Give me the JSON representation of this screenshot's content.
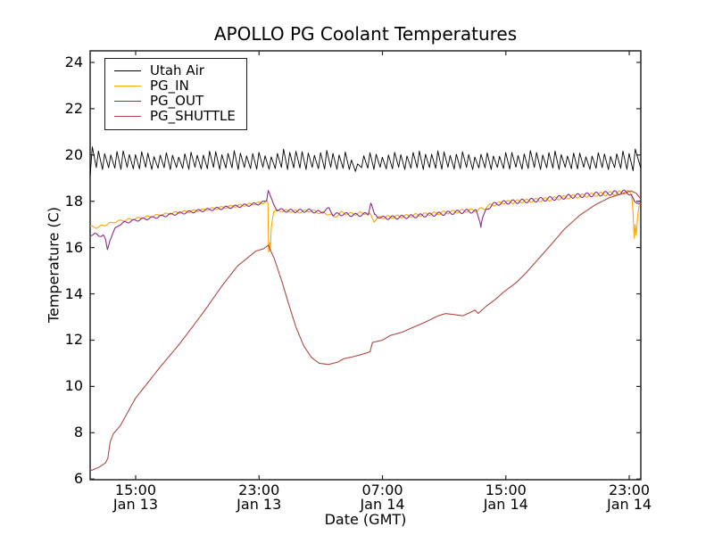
{
  "figure": {
    "background": "#ffffff",
    "spine_color": "#262626"
  },
  "chart_data": {
    "type": "line",
    "title": "APOLLO PG Coolant Temperatures",
    "xlabel": "Date (GMT)",
    "ylabel": "Temperature (C)",
    "x_axis": {
      "unit": "hours since Jan 13 00:00 GMT",
      "range": [
        12.05,
        47.75
      ],
      "ticks": [
        {
          "value": 15,
          "time": "15:00",
          "date": "Jan 13"
        },
        {
          "value": 23,
          "time": "23:00",
          "date": "Jan 13"
        },
        {
          "value": 31,
          "time": "07:00",
          "date": "Jan 14"
        },
        {
          "value": 39,
          "time": "15:00",
          "date": "Jan 14"
        },
        {
          "value": 47,
          "time": "23:00",
          "date": "Jan 14"
        }
      ]
    },
    "y_axis": {
      "range": [
        5.97,
        24.5
      ],
      "ticks": [
        6,
        8,
        10,
        12,
        14,
        16,
        18,
        20,
        22,
        24
      ]
    },
    "legend": {
      "position": "upper left",
      "entries": [
        "Utah Air",
        "PG_IN",
        "PG_OUT",
        "PG_SHUTTLE"
      ]
    },
    "series": [
      {
        "name": "Utah Air",
        "color": "#000000",
        "width": 0.9,
        "generator": {
          "kind": "sawtooth",
          "start": 12.05,
          "end": 47.75,
          "period_hours": 0.4,
          "peak": 20.05,
          "trough": 19.42,
          "peak_jitter": 0.1,
          "trough_jitter": 0.05,
          "rise_fraction": 0.35,
          "start_spike": {
            "peak": 20.35,
            "trough": 19.1
          },
          "windows": [
            {
              "from": 24.3,
              "to": 25.3,
              "peak_delta": 0.18,
              "trough_delta": 0.0
            },
            {
              "from": 28.5,
              "to": 29.4,
              "peak_delta": -0.35,
              "trough_delta": -0.08
            },
            {
              "from": 47.2,
              "to": 47.75,
              "peak_delta": 0.25,
              "trough_delta": -0.15
            }
          ]
        }
      },
      {
        "name": "PG_IN",
        "color": "#ffa500",
        "width": 1.1,
        "oscillation": {
          "amplitude_start": 0.04,
          "amplitude_end": 0.09,
          "period_hours": 0.6,
          "phase": 0
        },
        "points": [
          [
            12.05,
            16.9
          ],
          [
            12.5,
            16.87
          ],
          [
            13.0,
            16.98
          ],
          [
            13.6,
            17.1
          ],
          [
            14.2,
            17.18
          ],
          [
            15.0,
            17.25
          ],
          [
            16.0,
            17.35
          ],
          [
            17.5,
            17.5
          ],
          [
            19.0,
            17.6
          ],
          [
            20.5,
            17.72
          ],
          [
            21.8,
            17.82
          ],
          [
            22.8,
            17.9
          ],
          [
            23.3,
            17.95
          ],
          [
            23.5,
            18.0
          ],
          [
            23.58,
            17.9
          ],
          [
            23.62,
            15.8
          ],
          [
            23.68,
            16.2
          ],
          [
            23.72,
            15.85
          ],
          [
            23.8,
            16.9
          ],
          [
            23.95,
            17.55
          ],
          [
            24.3,
            17.6
          ],
          [
            25.0,
            17.58
          ],
          [
            25.7,
            17.55
          ],
          [
            26.3,
            17.6
          ],
          [
            27.0,
            17.5
          ],
          [
            27.6,
            17.45
          ],
          [
            27.85,
            17.3
          ],
          [
            28.3,
            17.5
          ],
          [
            29.0,
            17.45
          ],
          [
            29.9,
            17.5
          ],
          [
            30.25,
            17.4
          ],
          [
            30.45,
            17.15
          ],
          [
            30.8,
            17.3
          ],
          [
            31.5,
            17.32
          ],
          [
            32.5,
            17.36
          ],
          [
            33.5,
            17.42
          ],
          [
            34.5,
            17.48
          ],
          [
            35.5,
            17.54
          ],
          [
            36.5,
            17.6
          ],
          [
            37.2,
            17.62
          ],
          [
            37.5,
            17.68
          ],
          [
            38.1,
            17.85
          ],
          [
            38.9,
            17.95
          ],
          [
            40.0,
            18.0
          ],
          [
            41.0,
            18.05
          ],
          [
            42.0,
            18.1
          ],
          [
            43.0,
            18.18
          ],
          [
            44.0,
            18.24
          ],
          [
            45.0,
            18.3
          ],
          [
            46.0,
            18.34
          ],
          [
            46.9,
            18.4
          ],
          [
            47.15,
            18.3
          ],
          [
            47.25,
            17.5
          ],
          [
            47.32,
            16.4
          ],
          [
            47.38,
            17.0
          ],
          [
            47.45,
            16.5
          ],
          [
            47.55,
            17.4
          ],
          [
            47.65,
            17.85
          ],
          [
            47.75,
            17.95
          ]
        ]
      },
      {
        "name": "PG_OUT",
        "color": "#8a2b8a",
        "width": 1.1,
        "oscillation": {
          "amplitude_start": 0.05,
          "amplitude_end": 0.1,
          "period_hours": 0.6,
          "phase": 3.1
        },
        "points": [
          [
            12.05,
            16.55
          ],
          [
            12.35,
            16.6
          ],
          [
            12.6,
            16.5
          ],
          [
            12.9,
            16.55
          ],
          [
            13.05,
            16.35
          ],
          [
            13.17,
            15.9
          ],
          [
            13.35,
            16.35
          ],
          [
            13.65,
            16.8
          ],
          [
            13.95,
            17.0
          ],
          [
            14.4,
            17.1
          ],
          [
            15.0,
            17.18
          ],
          [
            16.0,
            17.28
          ],
          [
            17.5,
            17.45
          ],
          [
            19.0,
            17.58
          ],
          [
            20.5,
            17.7
          ],
          [
            21.8,
            17.8
          ],
          [
            22.8,
            17.88
          ],
          [
            23.3,
            17.95
          ],
          [
            23.5,
            18.05
          ],
          [
            23.6,
            18.5
          ],
          [
            23.75,
            18.2
          ],
          [
            23.95,
            17.85
          ],
          [
            24.15,
            17.65
          ],
          [
            24.6,
            17.6
          ],
          [
            25.3,
            17.58
          ],
          [
            26.2,
            17.6
          ],
          [
            27.0,
            17.52
          ],
          [
            27.55,
            17.68
          ],
          [
            27.8,
            17.42
          ],
          [
            28.4,
            17.45
          ],
          [
            29.2,
            17.4
          ],
          [
            30.1,
            17.45
          ],
          [
            30.25,
            17.95
          ],
          [
            30.5,
            17.4
          ],
          [
            31.0,
            17.28
          ],
          [
            31.8,
            17.3
          ],
          [
            32.8,
            17.34
          ],
          [
            33.8,
            17.4
          ],
          [
            34.8,
            17.46
          ],
          [
            35.8,
            17.53
          ],
          [
            36.6,
            17.58
          ],
          [
            37.1,
            17.55
          ],
          [
            37.28,
            17.2
          ],
          [
            37.38,
            16.95
          ],
          [
            37.5,
            17.3
          ],
          [
            37.7,
            17.6
          ],
          [
            38.1,
            17.85
          ],
          [
            38.9,
            17.95
          ],
          [
            40.0,
            18.0
          ],
          [
            41.0,
            18.06
          ],
          [
            42.0,
            18.12
          ],
          [
            43.0,
            18.2
          ],
          [
            44.0,
            18.26
          ],
          [
            45.0,
            18.31
          ],
          [
            46.0,
            18.36
          ],
          [
            46.9,
            18.4
          ],
          [
            47.15,
            18.25
          ],
          [
            47.35,
            17.95
          ],
          [
            47.55,
            18.0
          ],
          [
            47.75,
            17.9
          ]
        ]
      },
      {
        "name": "PG_SHUTTLE",
        "color": "#b04843",
        "width": 1.1,
        "points": [
          [
            12.05,
            6.35
          ],
          [
            12.6,
            6.5
          ],
          [
            13.05,
            6.7
          ],
          [
            13.2,
            6.9
          ],
          [
            13.35,
            7.6
          ],
          [
            13.55,
            7.95
          ],
          [
            14.0,
            8.3
          ],
          [
            15.0,
            9.5
          ],
          [
            15.6,
            10.0
          ],
          [
            16.6,
            10.85
          ],
          [
            17.8,
            11.8
          ],
          [
            18.6,
            12.5
          ],
          [
            19.5,
            13.3
          ],
          [
            20.6,
            14.35
          ],
          [
            21.6,
            15.2
          ],
          [
            22.8,
            15.85
          ],
          [
            23.3,
            15.95
          ],
          [
            23.6,
            16.1
          ],
          [
            24.0,
            15.5
          ],
          [
            24.5,
            14.5
          ],
          [
            24.9,
            13.6
          ],
          [
            25.4,
            12.55
          ],
          [
            25.9,
            11.75
          ],
          [
            26.4,
            11.25
          ],
          [
            26.9,
            11.0
          ],
          [
            27.5,
            10.95
          ],
          [
            28.1,
            11.05
          ],
          [
            28.5,
            11.2
          ],
          [
            29.2,
            11.3
          ],
          [
            30.0,
            11.45
          ],
          [
            30.2,
            11.5
          ],
          [
            30.35,
            11.9
          ],
          [
            31.0,
            12.0
          ],
          [
            31.5,
            12.2
          ],
          [
            32.3,
            12.35
          ],
          [
            32.8,
            12.5
          ],
          [
            33.5,
            12.7
          ],
          [
            34.0,
            12.85
          ],
          [
            34.6,
            13.05
          ],
          [
            35.1,
            13.15
          ],
          [
            35.7,
            13.1
          ],
          [
            36.2,
            13.05
          ],
          [
            36.7,
            13.2
          ],
          [
            37.0,
            13.3
          ],
          [
            37.2,
            13.15
          ],
          [
            37.7,
            13.45
          ],
          [
            38.3,
            13.75
          ],
          [
            38.9,
            14.1
          ],
          [
            39.7,
            14.5
          ],
          [
            40.3,
            14.9
          ],
          [
            40.9,
            15.35
          ],
          [
            41.5,
            15.8
          ],
          [
            41.9,
            16.1
          ],
          [
            42.8,
            16.8
          ],
          [
            43.8,
            17.4
          ],
          [
            44.8,
            17.85
          ],
          [
            45.7,
            18.15
          ],
          [
            46.4,
            18.3
          ],
          [
            47.1,
            18.45
          ],
          [
            47.45,
            18.35
          ],
          [
            47.75,
            18.1
          ]
        ]
      }
    ]
  }
}
